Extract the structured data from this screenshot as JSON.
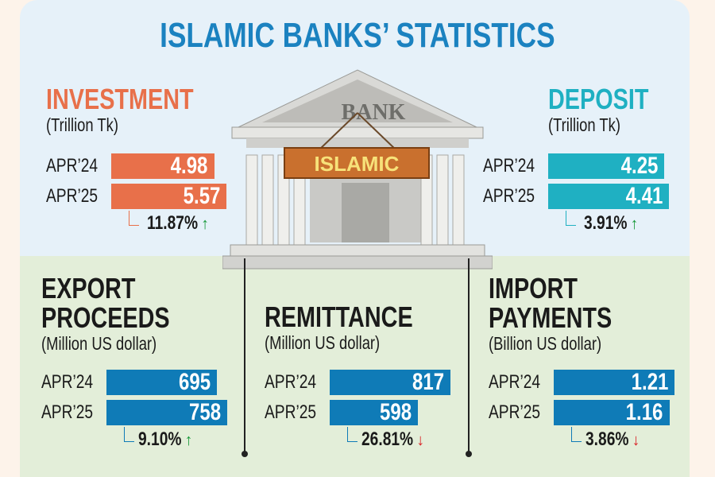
{
  "title": "ISLAMIC BANKS’ STATISTICS",
  "illustration": {
    "pediment_text": "BANK",
    "sign_text": "ISLAMIC"
  },
  "colors": {
    "title": "#1b82c0",
    "investment": "#e8704a",
    "deposit": "#1fb0c2",
    "bottom_bars": "#0f7bb7",
    "up_arrow": "#1a9a3c",
    "down_arrow": "#d9262a"
  },
  "chart_data": [
    {
      "type": "bar",
      "id": "investment",
      "title": "INVESTMENT",
      "unit": "(Trillion Tk)",
      "categories": [
        "APR’24",
        "APR’25"
      ],
      "values": [
        4.98,
        5.57
      ],
      "value_labels": [
        "4.98",
        "5.57"
      ],
      "change": "11.87%",
      "direction": "up"
    },
    {
      "type": "bar",
      "id": "deposit",
      "title": "DEPOSIT",
      "unit": "(Trillion Tk)",
      "categories": [
        "APR’24",
        "APR’25"
      ],
      "values": [
        4.25,
        4.41
      ],
      "value_labels": [
        "4.25",
        "4.41"
      ],
      "change": "3.91%",
      "direction": "up"
    },
    {
      "type": "bar",
      "id": "export",
      "title_lines": [
        "EXPORT",
        "PROCEEDS"
      ],
      "unit": "(Million US dollar)",
      "categories": [
        "APR’24",
        "APR’25"
      ],
      "values": [
        695,
        758
      ],
      "value_labels": [
        "695",
        "758"
      ],
      "change": "9.10%",
      "direction": "up"
    },
    {
      "type": "bar",
      "id": "remittance",
      "title_lines": [
        "REMITTANCE"
      ],
      "unit": "(Million US dollar)",
      "categories": [
        "APR’24",
        "APR’25"
      ],
      "values": [
        817,
        598
      ],
      "value_labels": [
        "817",
        "598"
      ],
      "change": "26.81%",
      "direction": "down"
    },
    {
      "type": "bar",
      "id": "import",
      "title_lines": [
        "IMPORT",
        "PAYMENTS"
      ],
      "unit": "(Billion US dollar)",
      "categories": [
        "APR’24",
        "APR’25"
      ],
      "values": [
        1.21,
        1.16
      ],
      "value_labels": [
        "1.21",
        "1.16"
      ],
      "change": "3.86%",
      "direction": "down"
    }
  ]
}
